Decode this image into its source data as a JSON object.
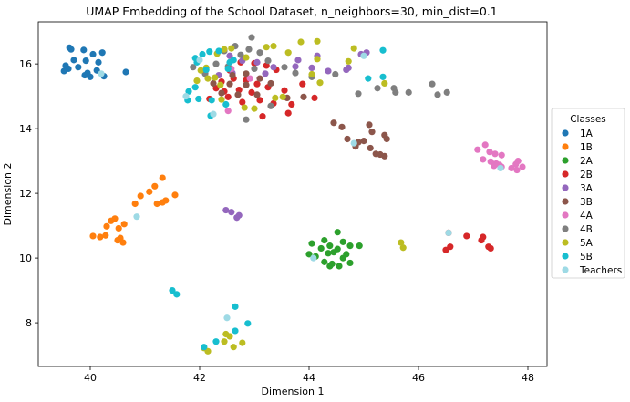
{
  "chart_data": {
    "type": "scatter",
    "title": "UMAP Embedding of the School Dataset, n_neighbors=30, min_dist=0.1",
    "xlabel": "Dimension 1",
    "ylabel": "Dimension 2",
    "xlim": [
      39.05,
      48.35
    ],
    "ylim": [
      6.65,
      17.3
    ],
    "xticks": [
      40,
      42,
      44,
      46,
      48
    ],
    "yticks": [
      8,
      10,
      12,
      14,
      16
    ],
    "grid": false,
    "legend": {
      "title": "Classes",
      "placement": "center-right-outside"
    },
    "series": [
      {
        "name": "1A",
        "color": "#1f77b4",
        "points": [
          [
            39.62,
            16.5
          ],
          [
            39.88,
            16.43
          ],
          [
            40.05,
            16.3
          ],
          [
            40.22,
            16.35
          ],
          [
            39.7,
            16.12
          ],
          [
            39.55,
            15.95
          ],
          [
            39.92,
            16.1
          ],
          [
            40.15,
            16.05
          ],
          [
            39.6,
            15.85
          ],
          [
            39.78,
            15.9
          ],
          [
            39.95,
            15.72
          ],
          [
            40.12,
            15.8
          ],
          [
            39.52,
            15.78
          ],
          [
            40.0,
            15.6
          ],
          [
            40.25,
            15.62
          ],
          [
            39.9,
            15.65
          ],
          [
            40.65,
            15.75
          ],
          [
            39.65,
            16.45
          ]
        ]
      },
      {
        "name": "1B",
        "color": "#ff7f0e",
        "points": [
          [
            41.32,
            12.48
          ],
          [
            41.18,
            12.22
          ],
          [
            41.55,
            11.95
          ],
          [
            41.08,
            12.05
          ],
          [
            41.38,
            11.78
          ],
          [
            40.92,
            11.92
          ],
          [
            41.22,
            11.68
          ],
          [
            41.32,
            11.72
          ],
          [
            40.82,
            11.68
          ],
          [
            40.45,
            11.22
          ],
          [
            40.38,
            11.15
          ],
          [
            40.3,
            10.98
          ],
          [
            40.62,
            11.05
          ],
          [
            40.52,
            10.92
          ],
          [
            40.28,
            10.7
          ],
          [
            40.05,
            10.68
          ],
          [
            40.18,
            10.65
          ],
          [
            40.55,
            10.62
          ],
          [
            40.5,
            10.55
          ],
          [
            40.6,
            10.48
          ]
        ]
      },
      {
        "name": "2A",
        "color": "#2ca02c",
        "points": [
          [
            44.52,
            10.8
          ],
          [
            44.28,
            10.55
          ],
          [
            44.62,
            10.5
          ],
          [
            44.75,
            10.38
          ],
          [
            44.92,
            10.38
          ],
          [
            44.05,
            10.45
          ],
          [
            44.22,
            10.3
          ],
          [
            44.38,
            10.38
          ],
          [
            44.52,
            10.28
          ],
          [
            44.45,
            10.18
          ],
          [
            44.68,
            10.12
          ],
          [
            44.35,
            10.15
          ],
          [
            44.0,
            10.12
          ],
          [
            44.12,
            10.05
          ],
          [
            44.62,
            10.0
          ],
          [
            44.28,
            9.88
          ],
          [
            44.42,
            9.82
          ],
          [
            44.38,
            9.75
          ],
          [
            44.75,
            9.85
          ],
          [
            44.55,
            9.75
          ]
        ]
      },
      {
        "name": "2B",
        "color": "#d62728",
        "points": [
          [
            42.55,
            15.8
          ],
          [
            42.75,
            16.05
          ],
          [
            43.0,
            16.02
          ],
          [
            43.22,
            15.95
          ],
          [
            43.4,
            15.82
          ],
          [
            42.4,
            15.45
          ],
          [
            42.62,
            15.55
          ],
          [
            42.85,
            15.5
          ],
          [
            43.05,
            15.38
          ],
          [
            42.3,
            15.25
          ],
          [
            42.45,
            15.15
          ],
          [
            42.72,
            15.2
          ],
          [
            42.95,
            15.12
          ],
          [
            43.25,
            15.28
          ],
          [
            43.55,
            15.18
          ],
          [
            42.18,
            14.92
          ],
          [
            42.52,
            14.98
          ],
          [
            42.78,
            14.82
          ],
          [
            43.1,
            14.88
          ],
          [
            43.35,
            14.78
          ],
          [
            43.68,
            14.75
          ],
          [
            43.62,
            14.48
          ],
          [
            43.15,
            14.38
          ],
          [
            44.1,
            14.95
          ],
          [
            46.55,
            10.78
          ],
          [
            46.5,
            10.25
          ],
          [
            46.58,
            10.35
          ],
          [
            46.88,
            10.68
          ],
          [
            47.15,
            10.55
          ],
          [
            47.18,
            10.65
          ],
          [
            47.28,
            10.35
          ],
          [
            47.32,
            10.3
          ],
          [
            43.88,
            15.38
          ]
        ]
      },
      {
        "name": "3A",
        "color": "#9467bd",
        "points": [
          [
            42.55,
            16.25
          ],
          [
            42.78,
            16.1
          ],
          [
            43.05,
            16.05
          ],
          [
            43.35,
            15.9
          ],
          [
            43.75,
            15.92
          ],
          [
            44.05,
            15.88
          ],
          [
            44.35,
            15.78
          ],
          [
            44.68,
            15.82
          ],
          [
            44.72,
            15.88
          ],
          [
            44.95,
            16.3
          ],
          [
            45.05,
            16.35
          ],
          [
            42.35,
            15.65
          ],
          [
            42.6,
            15.72
          ],
          [
            43.2,
            15.7
          ],
          [
            42.48,
            11.48
          ],
          [
            42.58,
            11.42
          ],
          [
            42.68,
            11.25
          ],
          [
            42.72,
            11.32
          ],
          [
            43.8,
            16.12
          ],
          [
            44.15,
            16.25
          ]
        ]
      },
      {
        "name": "3B",
        "color": "#8c564b",
        "points": [
          [
            42.6,
            15.65
          ],
          [
            42.85,
            15.7
          ],
          [
            43.1,
            15.55
          ],
          [
            42.25,
            15.4
          ],
          [
            42.55,
            15.38
          ],
          [
            42.85,
            15.35
          ],
          [
            43.3,
            15.4
          ],
          [
            42.4,
            15.1
          ],
          [
            42.7,
            15.05
          ],
          [
            43.05,
            15.05
          ],
          [
            44.45,
            14.18
          ],
          [
            44.6,
            14.05
          ],
          [
            45.1,
            14.12
          ],
          [
            45.15,
            13.9
          ],
          [
            45.38,
            13.8
          ],
          [
            44.7,
            13.68
          ],
          [
            44.9,
            13.58
          ],
          [
            45.0,
            13.62
          ],
          [
            45.12,
            13.4
          ],
          [
            44.85,
            13.45
          ],
          [
            45.22,
            13.22
          ],
          [
            45.3,
            13.2
          ],
          [
            45.38,
            13.15
          ],
          [
            45.42,
            13.68
          ],
          [
            43.9,
            14.98
          ],
          [
            43.6,
            14.95
          ]
        ]
      },
      {
        "name": "4A",
        "color": "#e377c2",
        "points": [
          [
            42.58,
            15.85
          ],
          [
            42.92,
            15.55
          ],
          [
            42.52,
            14.55
          ],
          [
            47.08,
            13.35
          ],
          [
            47.22,
            13.5
          ],
          [
            47.3,
            13.28
          ],
          [
            47.4,
            13.22
          ],
          [
            47.52,
            13.18
          ],
          [
            47.18,
            13.05
          ],
          [
            47.32,
            12.98
          ],
          [
            47.42,
            12.92
          ],
          [
            47.52,
            12.82
          ],
          [
            47.38,
            12.85
          ],
          [
            47.82,
            13.0
          ],
          [
            47.78,
            12.9
          ],
          [
            47.9,
            12.82
          ],
          [
            47.7,
            12.78
          ],
          [
            47.8,
            12.72
          ],
          [
            47.48,
            12.88
          ]
        ]
      },
      {
        "name": "4B",
        "color": "#7f7f7f",
        "points": [
          [
            42.65,
            16.55
          ],
          [
            42.95,
            16.82
          ],
          [
            42.9,
            16.45
          ],
          [
            43.1,
            16.35
          ],
          [
            42.45,
            16.4
          ],
          [
            42.75,
            16.28
          ],
          [
            43.25,
            16.1
          ],
          [
            43.55,
            15.9
          ],
          [
            43.75,
            15.72
          ],
          [
            44.05,
            15.6
          ],
          [
            44.48,
            15.68
          ],
          [
            42.3,
            16.0
          ],
          [
            42.52,
            15.92
          ],
          [
            41.88,
            15.9
          ],
          [
            42.1,
            15.7
          ],
          [
            44.9,
            15.08
          ],
          [
            45.25,
            15.25
          ],
          [
            45.55,
            15.25
          ],
          [
            45.58,
            15.12
          ],
          [
            45.82,
            15.12
          ],
          [
            46.25,
            15.38
          ],
          [
            46.35,
            15.05
          ],
          [
            46.52,
            15.12
          ],
          [
            42.85,
            14.28
          ],
          [
            43.3,
            14.7
          ],
          [
            43.0,
            15.85
          ]
        ]
      },
      {
        "name": "5A",
        "color": "#bcbd22",
        "points": [
          [
            42.45,
            16.45
          ],
          [
            42.58,
            16.48
          ],
          [
            42.32,
            16.32
          ],
          [
            42.85,
            16.2
          ],
          [
            43.35,
            16.55
          ],
          [
            43.22,
            16.52
          ],
          [
            43.85,
            16.68
          ],
          [
            44.15,
            16.7
          ],
          [
            44.82,
            16.48
          ],
          [
            44.72,
            16.08
          ],
          [
            44.15,
            16.15
          ],
          [
            43.62,
            16.35
          ],
          [
            42.12,
            15.88
          ],
          [
            42.02,
            15.8
          ],
          [
            42.15,
            15.55
          ],
          [
            41.95,
            15.48
          ],
          [
            42.28,
            15.58
          ],
          [
            42.38,
            15.35
          ],
          [
            42.4,
            14.9
          ],
          [
            42.82,
            14.65
          ],
          [
            43.0,
            14.62
          ],
          [
            43.38,
            14.95
          ],
          [
            43.52,
            14.98
          ],
          [
            44.05,
            15.68
          ],
          [
            44.2,
            15.42
          ],
          [
            45.38,
            15.4
          ],
          [
            45.68,
            10.48
          ],
          [
            45.72,
            10.32
          ],
          [
            42.55,
            7.58
          ],
          [
            42.45,
            7.42
          ],
          [
            42.62,
            7.25
          ],
          [
            42.78,
            7.38
          ],
          [
            42.15,
            7.12
          ],
          [
            42.08,
            7.22
          ],
          [
            42.48,
            7.65
          ]
        ]
      },
      {
        "name": "5B",
        "color": "#17becf",
        "points": [
          [
            41.92,
            16.18
          ],
          [
            42.05,
            16.3
          ],
          [
            42.18,
            16.38
          ],
          [
            42.35,
            16.4
          ],
          [
            42.62,
            16.12
          ],
          [
            42.55,
            16.05
          ],
          [
            41.95,
            16.05
          ],
          [
            42.12,
            15.82
          ],
          [
            41.92,
            15.28
          ],
          [
            41.8,
            15.15
          ],
          [
            41.78,
            14.88
          ],
          [
            41.98,
            14.92
          ],
          [
            42.22,
            14.88
          ],
          [
            42.48,
            14.75
          ],
          [
            42.2,
            14.4
          ],
          [
            42.52,
            15.85
          ],
          [
            45.35,
            16.42
          ],
          [
            45.35,
            15.6
          ],
          [
            45.08,
            15.55
          ],
          [
            41.5,
            9.0
          ],
          [
            41.58,
            8.88
          ],
          [
            42.65,
            8.5
          ],
          [
            42.88,
            7.98
          ],
          [
            42.65,
            7.75
          ],
          [
            42.3,
            7.42
          ],
          [
            42.08,
            7.25
          ]
        ]
      },
      {
        "name": "Teachers",
        "color": "#9edae5",
        "points": [
          [
            40.2,
            15.7
          ],
          [
            41.75,
            15.0
          ],
          [
            42.0,
            16.12
          ],
          [
            42.25,
            14.45
          ],
          [
            44.82,
            13.55
          ],
          [
            45.0,
            16.25
          ],
          [
            46.55,
            10.78
          ],
          [
            47.5,
            12.78
          ],
          [
            40.85,
            11.28
          ],
          [
            44.08,
            10.0
          ],
          [
            42.5,
            8.15
          ]
        ]
      }
    ]
  }
}
